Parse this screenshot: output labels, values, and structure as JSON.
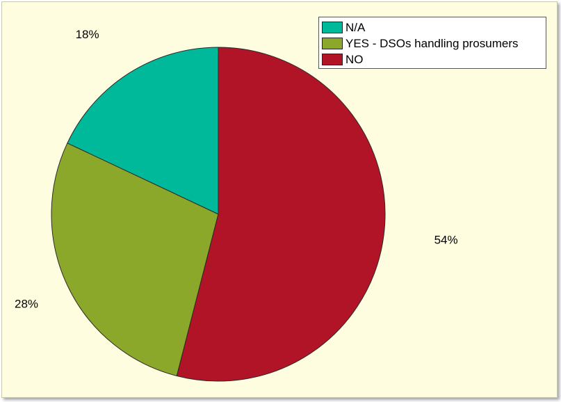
{
  "chart_data": {
    "type": "pie",
    "title": "",
    "categories": [
      "N/A",
      "YES - DSOs handling prosumers",
      "NO"
    ],
    "values": [
      18,
      28,
      54
    ],
    "labels": [
      "18%",
      "28%",
      "54%"
    ],
    "colors": [
      "#00b89a",
      "#8ba82a",
      "#b01426"
    ],
    "start_angle_deg": 0,
    "direction": "counterclockwise",
    "legend": {
      "position": "top-right",
      "entries": [
        "N/A",
        "YES - DSOs handling prosumers",
        "NO"
      ]
    },
    "background_color": "#fffde0"
  }
}
